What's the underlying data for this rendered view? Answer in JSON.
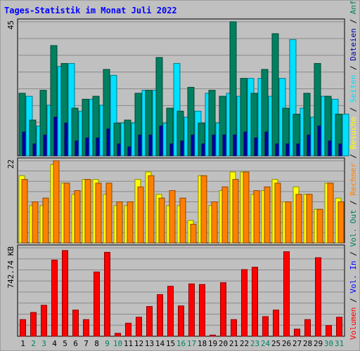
{
  "chart_data": {
    "type": "bar",
    "title": "Tages-Statistik im Monat Juli 2022",
    "days": [
      "1",
      "2",
      "3",
      "4",
      "5",
      "6",
      "7",
      "8",
      "9",
      "10",
      "11",
      "12",
      "13",
      "14",
      "15",
      "16",
      "17",
      "18",
      "19",
      "20",
      "21",
      "22",
      "23",
      "24",
      "25",
      "26",
      "27",
      "28",
      "29",
      "30",
      "31"
    ],
    "weekend_days": [
      "2",
      "3",
      "9",
      "10",
      "16",
      "17",
      "23",
      "24",
      "30",
      "31"
    ],
    "panels": [
      {
        "id": "requests",
        "ymax": 45,
        "ymax_label": "45",
        "series": [
          {
            "name": "Anfragen",
            "color": "#008060",
            "values": [
              21,
              12,
              22,
              37,
              31,
              16,
              19,
              20,
              29,
              11,
              12,
              21,
              22,
              33,
              16,
              15,
              23,
              11,
              22,
              20,
              45,
              26,
              21,
              29,
              41,
              16,
              14,
              21,
              31,
              20,
              14
            ]
          },
          {
            "name": "Dateien",
            "color": "#0000a0",
            "values": [
              8,
              4,
              7,
              13,
              11,
              5,
              6,
              6,
              9,
              4,
              3,
              7,
              7,
              10,
              4,
              5,
              7,
              4,
              7,
              7,
              7,
              8,
              6,
              8,
              4,
              4,
              4,
              7,
              10,
              5,
              4
            ]
          },
          {
            "name": "Seiten",
            "color": "#00e0ff",
            "values": [
              20,
              10,
              17,
              30,
              31,
              15,
              19,
              17,
              27,
              11,
              11,
              22,
              22,
              11,
              31,
              13,
              15,
              21,
              11,
              21,
              20,
              26,
              26,
              20,
              26,
              39,
              16,
              13,
              20,
              19,
              14
            ]
          }
        ]
      },
      {
        "id": "visits",
        "ymax": 22,
        "ymax_label": "22",
        "series": [
          {
            "name": "Besuche",
            "color": "#ffff00",
            "values": [
              18,
              10,
              10,
              21,
              16,
              13,
              17,
              17,
              13,
              10,
              10,
              17,
              19,
              13,
              10,
              10,
              6,
              18,
              10,
              14,
              19,
              19,
              13,
              14,
              17,
              11,
              15,
              13,
              9,
              16,
              12
            ]
          },
          {
            "name": "Rechner",
            "color": "#ff8000",
            "values": [
              17,
              11,
              12,
              22,
              16,
              14,
              17,
              16,
              16,
              11,
              11,
              15,
              18,
              12,
              14,
              12,
              5,
              18,
              11,
              15,
              17,
              19,
              14,
              15,
              16,
              11,
              13,
              13,
              9,
              16,
              11
            ]
          }
        ]
      },
      {
        "id": "volume",
        "ymax": 742.74,
        "ymax_label": "742.74 KB",
        "series": [
          {
            "name": "Vol. In",
            "color": "#0000ff",
            "values": []
          },
          {
            "name": "Vol. Out",
            "color": "#008060",
            "values": []
          },
          {
            "name": "Volumen",
            "color": "#ff0000",
            "values": [
              140,
              200,
              260,
              640,
              720,
              220,
              140,
              540,
              705,
              25,
              110,
              160,
              250,
              350,
              420,
              255,
              440,
              435,
              10,
              450,
              140,
              560,
              580,
              165,
              220,
              710,
              60,
              140,
              660,
              90,
              160
            ]
          }
        ]
      }
    ],
    "legend_right": [
      {
        "text": "Anfragen",
        "color": "#008060"
      },
      {
        "text": "Dateien",
        "color": "#0000a0"
      },
      {
        "text": "Seiten",
        "color": "#00e0ff"
      },
      {
        "text": "Besuche",
        "color": "#ffff00"
      },
      {
        "text": "Rechner",
        "color": "#ff8000"
      },
      {
        "text": "Vol. Out",
        "color": "#008060"
      },
      {
        "text": "Vol. In",
        "color": "#0000ff"
      },
      {
        "text": "Volumen",
        "color": "#ff0000"
      }
    ],
    "legend_sep": "/",
    "grid": true
  }
}
